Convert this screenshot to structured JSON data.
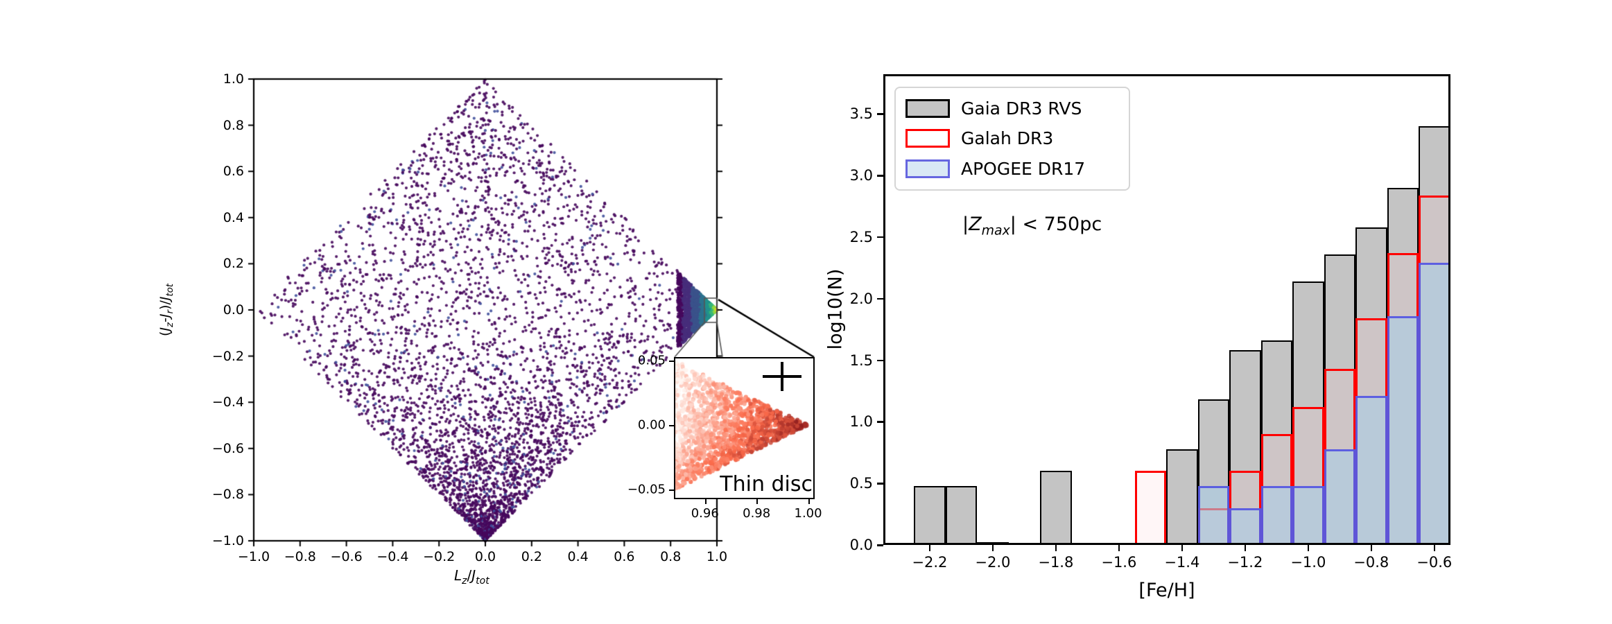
{
  "figure": {
    "background": "#ffffff"
  },
  "left_panel": {
    "xlabel_parts": [
      [
        "L",
        "i"
      ],
      [
        "z",
        "isub"
      ],
      [
        "/",
        "n"
      ],
      [
        "J",
        "i"
      ],
      [
        "tot",
        "isub"
      ]
    ],
    "ylabel_parts": [
      [
        "(",
        "n"
      ],
      [
        "J",
        "i"
      ],
      [
        "z",
        "isub"
      ],
      [
        "-",
        "n"
      ],
      [
        "J",
        "i"
      ],
      [
        "r",
        "isub"
      ],
      [
        ")/",
        "n"
      ],
      [
        "J",
        "i"
      ],
      [
        "tot",
        "isub"
      ]
    ],
    "x_tick_labels": [
      "−1.0",
      "−0.8",
      "−0.6",
      "−0.4",
      "−0.2",
      "0.0",
      "0.2",
      "0.4",
      "0.6",
      "0.8",
      "1.0"
    ],
    "y_tick_labels": [
      "1.0",
      "0.8",
      "0.6",
      "0.4",
      "0.2",
      "0.0",
      "−0.2",
      "−0.4",
      "−0.6",
      "−0.8",
      "−1.0"
    ]
  },
  "inset_panel": {
    "label": "Thin disc",
    "x_tick_labels": [
      "0.96",
      "0.98",
      "1.00"
    ],
    "y_tick_labels": [
      "0.05",
      "0.00",
      "−0.05"
    ]
  },
  "right_panel": {
    "xlabel": "[Fe/H]",
    "ylabel": "log10(N)",
    "x_tick_labels": [
      "−2.2",
      "−2.0",
      "−1.8",
      "−1.6",
      "−1.4",
      "−1.2",
      "−1.0",
      "−0.8",
      "−0.6"
    ],
    "y_tick_labels": [
      "0.0",
      "0.5",
      "1.0",
      "1.5",
      "2.0",
      "2.5",
      "3.0",
      "3.5"
    ],
    "annotation_parts": [
      [
        "|",
        "n"
      ],
      [
        "Z",
        "i"
      ],
      [
        "max",
        "isub"
      ],
      [
        "|",
        "n"
      ],
      [
        " < 750pc",
        "n"
      ]
    ],
    "legend": {
      "items": [
        {
          "label": "Gaia DR3 RVS",
          "fill": "#c4c4c4",
          "edge": "#000000"
        },
        {
          "label": "Galah DR3",
          "fill": "#ffffff",
          "edge": "#ff0000"
        },
        {
          "label": "APOGEE DR17",
          "fill": "#d9e8f5",
          "edge": "#6666e0"
        }
      ]
    }
  },
  "chart_data": [
    {
      "type": "scatter",
      "panel": "left-action-space",
      "xlabel": "L_z/J_tot",
      "ylabel": "(J_z-J_r)/J_tot",
      "xlim": [
        -1.0,
        1.0
      ],
      "ylim": [
        -1.0,
        1.0
      ],
      "x_ticks": [
        -1.0,
        -0.8,
        -0.6,
        -0.4,
        -0.2,
        0.0,
        0.2,
        0.4,
        0.6,
        0.8,
        1.0
      ],
      "y_ticks": [
        1.0,
        0.8,
        0.6,
        0.4,
        0.2,
        0.0,
        -0.2,
        -0.4,
        -0.6,
        -0.8,
        -1.0
      ],
      "description": "Action-space diamond |x|+|y|<=1 filled with stars; sparse at top, dense toward bottom; very dense color-graded clump (viridis: purple-blue-teal-green-yellow) at right tip near (1,0) = thin disc",
      "point_color_main": "#46085c",
      "point_color_alt": "#41519c",
      "tip_colormap": [
        "#46085c",
        "#472d7b",
        "#3b528b",
        "#2c728e",
        "#21918c",
        "#35b779",
        "#90d743",
        "#f3e51f"
      ],
      "n_points_background": 4200,
      "n_points_tip": 3200,
      "zoom_box": {
        "x": [
          0.946,
          1.0
        ],
        "y": [
          -0.054,
          0.051
        ]
      }
    },
    {
      "type": "scatter",
      "panel": "inset-thin-disc",
      "label": "Thin disc",
      "xlim": [
        0.9485,
        1.002
      ],
      "ylim": [
        -0.0563,
        0.0516
      ],
      "x_ticks": [
        0.96,
        0.98,
        1.0
      ],
      "y_ticks": [
        0.05,
        0.0,
        -0.05
      ],
      "description": "Zoom of diamond tip: right-pointing wedge of points, pale pink at upper left grading to dark red at apex (1.0, 0.0); Reds colormap",
      "colormap_stops": [
        "#fff5f0",
        "#fb6a4a",
        "#67000d"
      ],
      "n_points": 1600,
      "cross_marker": {
        "x": 0.9895,
        "y": 0.037
      }
    },
    {
      "type": "bar",
      "panel": "right-metallicity-histogram",
      "xlabel": "[Fe/H]",
      "ylabel": "log10(N)",
      "xlim": [
        -2.347,
        -0.549
      ],
      "ylim": [
        0,
        3.823
      ],
      "x_ticks": [
        -2.2,
        -2.0,
        -1.8,
        -1.6,
        -1.4,
        -1.2,
        -1.0,
        -0.8,
        -0.6
      ],
      "y_ticks": [
        0.0,
        0.5,
        1.0,
        1.5,
        2.0,
        2.5,
        3.0,
        3.5
      ],
      "bin_width": 0.1,
      "annotation": "|Z_max| < 750pc",
      "legend_position": "upper left",
      "grid": false,
      "series": [
        {
          "name": "Gaia DR3 RVS",
          "style": "filled-gray-black-edge",
          "centers": [
            -2.2,
            -2.1,
            -2.0,
            -1.8,
            -1.4,
            -1.3,
            -1.2,
            -1.1,
            -1.0,
            -0.9,
            -0.8,
            -0.7,
            -0.6
          ],
          "log10N": [
            0.48,
            0.48,
            0.02,
            0.6,
            0.78,
            1.18,
            1.58,
            1.66,
            2.14,
            2.36,
            2.58,
            2.9,
            3.4
          ]
        },
        {
          "name": "Galah DR3",
          "style": "open-red-edge",
          "centers": [
            -1.5,
            -1.3,
            -1.2,
            -1.1,
            -1.0,
            -0.9,
            -0.8,
            -0.7,
            -0.6
          ],
          "log10N": [
            0.6,
            0.3,
            0.6,
            0.9,
            1.12,
            1.43,
            1.84,
            2.37,
            2.84
          ],
          "zero_baseline_segments": [
            [
              -2.347,
              -2.25
            ],
            [
              -1.75,
              -1.55
            ],
            [
              -1.45,
              -1.35
            ]
          ]
        },
        {
          "name": "APOGEE DR17",
          "style": "lightblue-fill-blue-edge",
          "centers": [
            -1.3,
            -1.2,
            -1.1,
            -1.0,
            -0.9,
            -0.8,
            -0.7,
            -0.6
          ],
          "log10N": [
            0.48,
            0.3,
            0.48,
            0.48,
            0.78,
            1.21,
            1.86,
            2.29
          ],
          "zero_baseline_segments": [
            [
              -1.55,
              -1.35
            ]
          ]
        }
      ]
    }
  ]
}
